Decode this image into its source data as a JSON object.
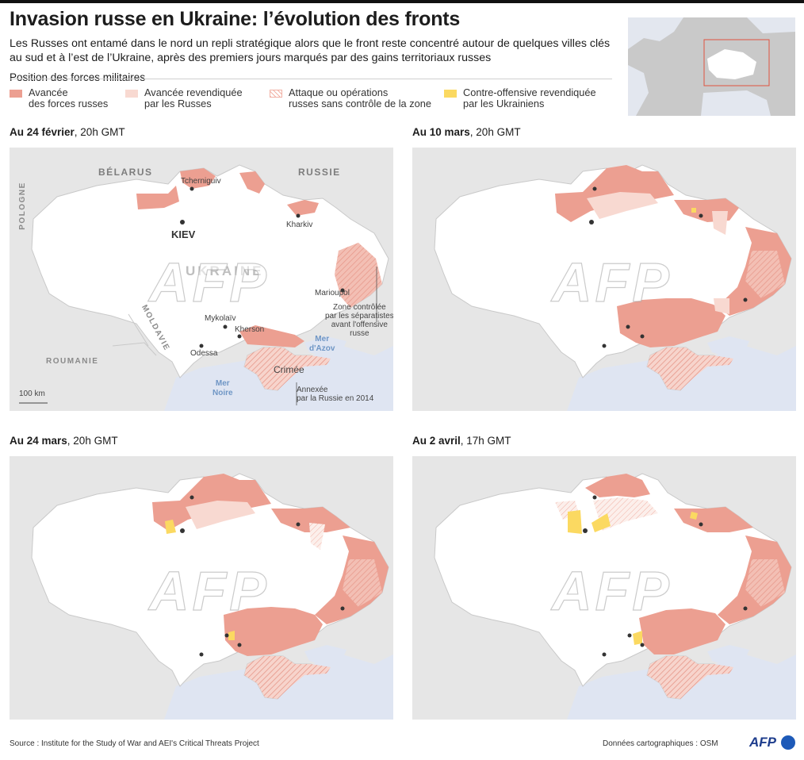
{
  "title": "Invasion russe en Ukraine: l’évolution des fronts",
  "subtitle": "Les Russes ont entamé dans le nord un repli stratégique alors que le front reste concentré autour de quelques villes clés au sud et à l’est de l’Ukraine, après des premiers jours marqués par des gains territoriaux russes",
  "legend": {
    "heading": "Position des forces militaires",
    "items": [
      {
        "line1": "Avancée",
        "line2": "des forces russes",
        "color": "#ec9f91"
      },
      {
        "line1": "Avancée revendiquée",
        "line2": "par les Russes",
        "color": "#f8d9d1"
      },
      {
        "line1": "Attaque ou opérations",
        "line2": "russes sans contrôle de la zone",
        "color": "#f3b3a7"
      },
      {
        "line1": "Contre-offensive revendiquée",
        "line2": "par les Ukrainiens",
        "color": "#fbd961"
      }
    ]
  },
  "panels": [
    {
      "date": "Au 24 février",
      "time": ", 20h GMT"
    },
    {
      "date": "Au 10 mars",
      "time": ", 20h GMT"
    },
    {
      "date": "Au 24 mars",
      "time": ", 20h GMT"
    },
    {
      "date": "Au 2 avril",
      "time": ", 17h GMT"
    }
  ],
  "map_labels": {
    "belarus": "BÉLARUS",
    "russia": "RUSSIE",
    "poland": "POLOGNE",
    "moldova": "MOLDAVIE",
    "romania": "ROUMANIE",
    "ukraine": "UKRAINE",
    "black_sea_1": "Mer",
    "black_sea_2": "Noire",
    "azov_1": "Mer",
    "azov_2": "d'Azov",
    "kiev": "KIEV",
    "tcherniguiv": "Tcherniguiv",
    "kharkiv": "Kharkiv",
    "marioupol": "Marioupol",
    "mykolaiv": "Mykolaïv",
    "kherson": "Kherson",
    "odessa": "Odessa",
    "crimee": "Crimée",
    "separatist_note": [
      "Zone contrôlée",
      "par les séparatistes",
      "avant l'offensive",
      "russe"
    ],
    "annexed_note": [
      "Annexée",
      "par la Russie en 2014"
    ],
    "scale": "100 km"
  },
  "watermark": "AFP",
  "source": "Source : Institute for the Study of War and AEI's Critical Threats Project",
  "data_credit": "Données cartographiques : OSM",
  "logo": "AFP",
  "colors": {
    "advance": "#ec9f91",
    "claimed": "#f8d9d1",
    "attack": "#f3b3a7",
    "counter": "#fbd961",
    "sea": "#dfe5f2",
    "land": "#ffffff"
  }
}
